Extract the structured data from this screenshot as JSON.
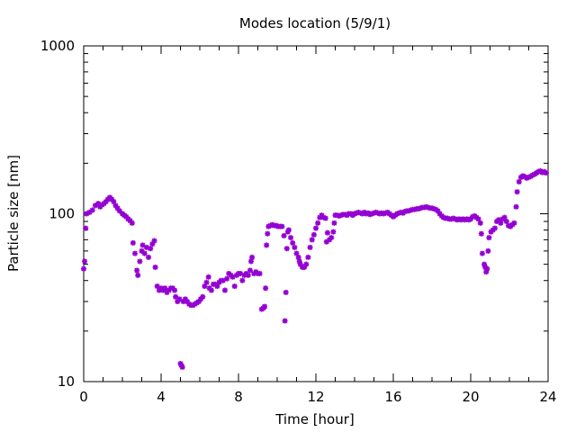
{
  "chart_data": {
    "type": "scatter",
    "title": "Modes location (5/9/1)",
    "xlabel": "Time [hour]",
    "ylabel": "Particle size [nm]",
    "xlim": [
      0,
      24
    ],
    "ylim": [
      10,
      1000
    ],
    "yscale": "log",
    "x_ticks": [
      0,
      4,
      8,
      12,
      16,
      20,
      24
    ],
    "x_tick_labels": [
      "0",
      "4",
      "8",
      "12",
      "16",
      "20",
      "24"
    ],
    "y_ticks": [
      10,
      100,
      1000
    ],
    "y_tick_labels": [
      "10",
      "100",
      "1000"
    ],
    "grid": false,
    "legend": "none",
    "marker_color": "#9400d3",
    "series": [
      {
        "name": "modes",
        "points": [
          [
            0.0,
            47
          ],
          [
            0.05,
            52
          ],
          [
            0.1,
            82
          ],
          [
            0.15,
            100
          ],
          [
            0.3,
            102
          ],
          [
            0.45,
            105
          ],
          [
            0.6,
            112
          ],
          [
            0.75,
            115
          ],
          [
            0.85,
            110
          ],
          [
            0.95,
            113
          ],
          [
            1.05,
            115
          ],
          [
            1.15,
            118
          ],
          [
            1.25,
            122
          ],
          [
            1.35,
            125
          ],
          [
            1.45,
            122
          ],
          [
            1.55,
            118
          ],
          [
            1.65,
            112
          ],
          [
            1.75,
            108
          ],
          [
            1.85,
            104
          ],
          [
            2.0,
            100
          ],
          [
            2.1,
            98
          ],
          [
            2.2,
            96
          ],
          [
            2.3,
            93
          ],
          [
            2.4,
            91
          ],
          [
            2.5,
            88
          ],
          [
            2.55,
            67
          ],
          [
            2.65,
            58
          ],
          [
            2.75,
            46
          ],
          [
            2.8,
            43
          ],
          [
            2.9,
            52
          ],
          [
            3.0,
            60
          ],
          [
            3.05,
            65
          ],
          [
            3.15,
            58
          ],
          [
            3.25,
            63
          ],
          [
            3.35,
            55
          ],
          [
            3.45,
            62
          ],
          [
            3.55,
            66
          ],
          [
            3.65,
            69
          ],
          [
            3.7,
            48
          ],
          [
            3.8,
            37
          ],
          [
            3.9,
            35
          ],
          [
            4.0,
            36
          ],
          [
            4.1,
            35
          ],
          [
            4.2,
            36
          ],
          [
            4.3,
            34
          ],
          [
            4.4,
            35
          ],
          [
            4.5,
            36
          ],
          [
            4.6,
            36
          ],
          [
            4.7,
            35
          ],
          [
            4.75,
            32
          ],
          [
            4.85,
            30
          ],
          [
            4.95,
            31
          ],
          [
            5.0,
            12.8
          ],
          [
            5.05,
            12.5
          ],
          [
            5.1,
            12.2
          ],
          [
            5.15,
            30
          ],
          [
            5.25,
            31
          ],
          [
            5.35,
            30
          ],
          [
            5.45,
            29
          ],
          [
            5.55,
            28.5
          ],
          [
            5.65,
            28.5
          ],
          [
            5.75,
            29
          ],
          [
            5.85,
            29.5
          ],
          [
            5.95,
            30
          ],
          [
            6.05,
            31
          ],
          [
            6.15,
            32
          ],
          [
            6.25,
            37
          ],
          [
            6.35,
            39
          ],
          [
            6.45,
            42
          ],
          [
            6.5,
            36
          ],
          [
            6.6,
            35
          ],
          [
            6.7,
            38
          ],
          [
            6.8,
            38
          ],
          [
            6.9,
            37
          ],
          [
            7.0,
            39
          ],
          [
            7.1,
            40
          ],
          [
            7.2,
            40
          ],
          [
            7.3,
            35
          ],
          [
            7.4,
            41
          ],
          [
            7.5,
            44
          ],
          [
            7.6,
            43
          ],
          [
            7.7,
            42
          ],
          [
            7.8,
            37
          ],
          [
            7.9,
            43
          ],
          [
            8.0,
            44
          ],
          [
            8.1,
            44
          ],
          [
            8.2,
            40
          ],
          [
            8.3,
            43
          ],
          [
            8.4,
            44
          ],
          [
            8.5,
            43
          ],
          [
            8.6,
            46
          ],
          [
            8.65,
            52
          ],
          [
            8.7,
            55
          ],
          [
            8.8,
            44
          ],
          [
            8.9,
            45
          ],
          [
            9.0,
            44
          ],
          [
            9.1,
            44
          ],
          [
            9.2,
            27
          ],
          [
            9.3,
            27.5
          ],
          [
            9.35,
            28
          ],
          [
            9.4,
            36
          ],
          [
            9.45,
            65
          ],
          [
            9.5,
            76
          ],
          [
            9.55,
            84
          ],
          [
            9.65,
            85
          ],
          [
            9.75,
            86
          ],
          [
            9.85,
            85
          ],
          [
            9.95,
            85
          ],
          [
            10.05,
            84
          ],
          [
            10.15,
            84
          ],
          [
            10.25,
            84
          ],
          [
            10.35,
            74
          ],
          [
            10.4,
            23
          ],
          [
            10.45,
            34
          ],
          [
            10.5,
            62
          ],
          [
            10.55,
            78
          ],
          [
            10.6,
            80
          ],
          [
            10.7,
            72
          ],
          [
            10.8,
            67
          ],
          [
            10.9,
            63
          ],
          [
            11.0,
            58
          ],
          [
            11.1,
            55
          ],
          [
            11.15,
            52
          ],
          [
            11.2,
            50
          ],
          [
            11.3,
            48
          ],
          [
            11.4,
            48
          ],
          [
            11.5,
            50
          ],
          [
            11.6,
            55
          ],
          [
            11.7,
            63
          ],
          [
            11.8,
            70
          ],
          [
            11.9,
            75
          ],
          [
            12.0,
            82
          ],
          [
            12.1,
            88
          ],
          [
            12.2,
            95
          ],
          [
            12.3,
            98
          ],
          [
            12.4,
            95
          ],
          [
            12.5,
            94
          ],
          [
            12.55,
            68
          ],
          [
            12.6,
            77
          ],
          [
            12.7,
            70
          ],
          [
            12.8,
            72
          ],
          [
            12.9,
            78
          ],
          [
            12.95,
            88
          ],
          [
            13.0,
            98
          ],
          [
            13.1,
            98
          ],
          [
            13.2,
            97
          ],
          [
            13.3,
            98
          ],
          [
            13.4,
            99
          ],
          [
            13.5,
            99
          ],
          [
            13.6,
            98
          ],
          [
            13.7,
            100
          ],
          [
            13.8,
            100
          ],
          [
            13.9,
            98
          ],
          [
            14.0,
            100
          ],
          [
            14.1,
            101
          ],
          [
            14.2,
            102
          ],
          [
            14.3,
            101
          ],
          [
            14.4,
            100
          ],
          [
            14.5,
            102
          ],
          [
            14.6,
            100
          ],
          [
            14.7,
            101
          ],
          [
            14.8,
            99
          ],
          [
            14.9,
            100
          ],
          [
            15.0,
            101
          ],
          [
            15.1,
            102
          ],
          [
            15.2,
            101
          ],
          [
            15.3,
            100
          ],
          [
            15.4,
            101
          ],
          [
            15.5,
            100
          ],
          [
            15.6,
            101
          ],
          [
            15.7,
            102
          ],
          [
            15.8,
            100
          ],
          [
            15.9,
            98
          ],
          [
            16.0,
            96
          ],
          [
            16.1,
            98
          ],
          [
            16.2,
            100
          ],
          [
            16.3,
            101
          ],
          [
            16.4,
            102
          ],
          [
            16.5,
            101
          ],
          [
            16.6,
            103
          ],
          [
            16.7,
            104
          ],
          [
            16.8,
            104
          ],
          [
            16.9,
            105
          ],
          [
            17.0,
            106
          ],
          [
            17.1,
            106
          ],
          [
            17.2,
            107
          ],
          [
            17.3,
            107
          ],
          [
            17.4,
            108
          ],
          [
            17.5,
            109
          ],
          [
            17.6,
            109
          ],
          [
            17.7,
            110
          ],
          [
            17.8,
            109
          ],
          [
            17.9,
            108
          ],
          [
            18.0,
            108
          ],
          [
            18.1,
            107
          ],
          [
            18.2,
            106
          ],
          [
            18.3,
            104
          ],
          [
            18.4,
            100
          ],
          [
            18.5,
            97
          ],
          [
            18.6,
            95
          ],
          [
            18.7,
            94
          ],
          [
            18.8,
            94
          ],
          [
            18.9,
            93
          ],
          [
            19.0,
            93
          ],
          [
            19.1,
            94
          ],
          [
            19.2,
            93
          ],
          [
            19.3,
            92
          ],
          [
            19.4,
            93
          ],
          [
            19.5,
            92
          ],
          [
            19.6,
            93
          ],
          [
            19.7,
            92
          ],
          [
            19.8,
            93
          ],
          [
            19.9,
            92
          ],
          [
            20.0,
            93
          ],
          [
            20.1,
            96
          ],
          [
            20.2,
            97
          ],
          [
            20.3,
            95
          ],
          [
            20.4,
            93
          ],
          [
            20.5,
            88
          ],
          [
            20.55,
            76
          ],
          [
            20.6,
            58
          ],
          [
            20.7,
            50
          ],
          [
            20.75,
            48
          ],
          [
            20.8,
            45
          ],
          [
            20.85,
            47
          ],
          [
            20.9,
            60
          ],
          [
            20.95,
            72
          ],
          [
            21.05,
            78
          ],
          [
            21.15,
            80
          ],
          [
            21.25,
            82
          ],
          [
            21.35,
            90
          ],
          [
            21.45,
            92
          ],
          [
            21.55,
            88
          ],
          [
            21.65,
            93
          ],
          [
            21.75,
            95
          ],
          [
            21.85,
            90
          ],
          [
            21.95,
            85
          ],
          [
            22.05,
            84
          ],
          [
            22.15,
            86
          ],
          [
            22.25,
            88
          ],
          [
            22.35,
            110
          ],
          [
            22.4,
            135
          ],
          [
            22.5,
            155
          ],
          [
            22.6,
            165
          ],
          [
            22.7,
            168
          ],
          [
            22.8,
            166
          ],
          [
            22.9,
            163
          ],
          [
            23.0,
            165
          ],
          [
            23.1,
            167
          ],
          [
            23.2,
            170
          ],
          [
            23.3,
            172
          ],
          [
            23.4,
            175
          ],
          [
            23.5,
            178
          ],
          [
            23.6,
            180
          ],
          [
            23.7,
            176
          ],
          [
            23.8,
            178
          ],
          [
            23.9,
            175
          ]
        ]
      }
    ]
  }
}
